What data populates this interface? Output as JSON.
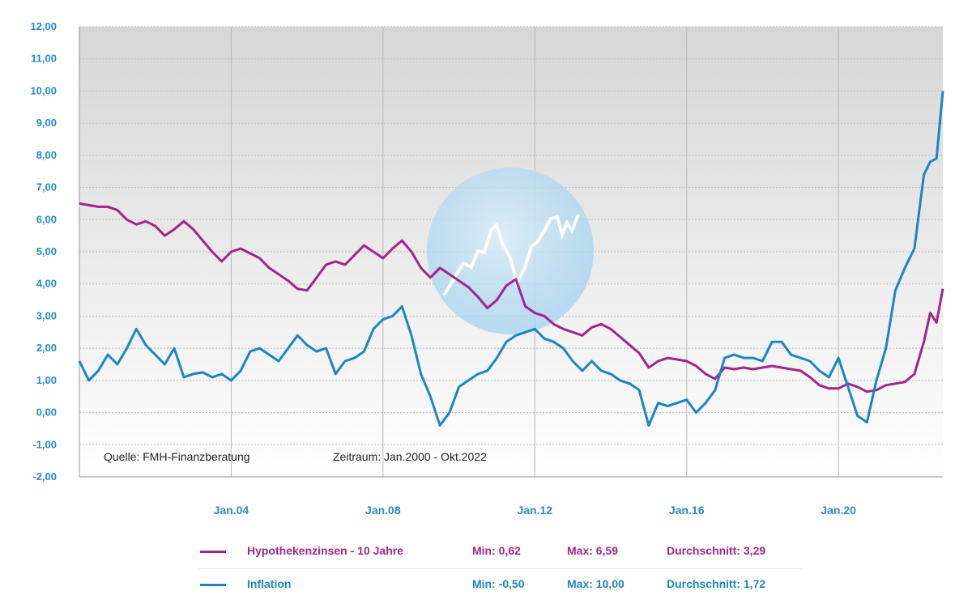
{
  "chart_data": {
    "type": "line",
    "title": "",
    "xlabel": "",
    "ylabel": "",
    "ylim": [
      -2,
      12
    ],
    "xlim": [
      "2000-01",
      "2022-10"
    ],
    "grid": true,
    "y_ticks": [
      "12,00",
      "11,00",
      "10,00",
      "9,00",
      "8,00",
      "7,00",
      "6,00",
      "5,00",
      "4,00",
      "3,00",
      "2,00",
      "1,00",
      "0,00",
      "-1,00",
      "-2,00"
    ],
    "x_ticks": [
      "Jan.04",
      "Jan.08",
      "Jan.12",
      "Jan.16",
      "Jan.20"
    ],
    "annotations": {
      "source": "Quelle: FMH-Finanzberatung",
      "period": "Zeitraum: Jan.2000 - Okt.2022"
    },
    "legend_position": "bottom",
    "series": [
      {
        "name": "Hypothekenzinsen - 10 Jahre",
        "color": "#a0268a",
        "min_label": "Min: 0,62",
        "max_label": "Max: 6,59",
        "avg_label": "Durchschnitt: 3,29",
        "points": [
          [
            "2000-01",
            6.5
          ],
          [
            "2000-04",
            6.45
          ],
          [
            "2000-07",
            6.4
          ],
          [
            "2000-10",
            6.4
          ],
          [
            "2001-01",
            6.3
          ],
          [
            "2001-04",
            6.0
          ],
          [
            "2001-07",
            5.85
          ],
          [
            "2001-10",
            5.95
          ],
          [
            "2002-01",
            5.8
          ],
          [
            "2002-04",
            5.5
          ],
          [
            "2002-07",
            5.7
          ],
          [
            "2002-10",
            5.95
          ],
          [
            "2003-01",
            5.7
          ],
          [
            "2003-04",
            5.35
          ],
          [
            "2003-07",
            5.0
          ],
          [
            "2003-10",
            4.7
          ],
          [
            "2004-01",
            5.0
          ],
          [
            "2004-04",
            5.1
          ],
          [
            "2004-07",
            4.95
          ],
          [
            "2004-10",
            4.8
          ],
          [
            "2005-01",
            4.5
          ],
          [
            "2005-04",
            4.3
          ],
          [
            "2005-07",
            4.1
          ],
          [
            "2005-10",
            3.85
          ],
          [
            "2006-01",
            3.8
          ],
          [
            "2006-04",
            4.2
          ],
          [
            "2006-07",
            4.6
          ],
          [
            "2006-10",
            4.7
          ],
          [
            "2007-01",
            4.6
          ],
          [
            "2007-04",
            4.9
          ],
          [
            "2007-07",
            5.2
          ],
          [
            "2007-10",
            5.0
          ],
          [
            "2008-01",
            4.8
          ],
          [
            "2008-04",
            5.1
          ],
          [
            "2008-07",
            5.35
          ],
          [
            "2008-10",
            5.0
          ],
          [
            "2009-01",
            4.5
          ],
          [
            "2009-04",
            4.2
          ],
          [
            "2009-07",
            4.5
          ],
          [
            "2009-10",
            4.3
          ],
          [
            "2010-01",
            4.1
          ],
          [
            "2010-04",
            3.9
          ],
          [
            "2010-07",
            3.6
          ],
          [
            "2010-10",
            3.25
          ],
          [
            "2011-01",
            3.5
          ],
          [
            "2011-04",
            3.95
          ],
          [
            "2011-07",
            4.15
          ],
          [
            "2011-10",
            3.3
          ],
          [
            "2012-01",
            3.1
          ],
          [
            "2012-04",
            3.0
          ],
          [
            "2012-07",
            2.75
          ],
          [
            "2012-10",
            2.6
          ],
          [
            "2013-01",
            2.5
          ],
          [
            "2013-04",
            2.4
          ],
          [
            "2013-07",
            2.65
          ],
          [
            "2013-10",
            2.75
          ],
          [
            "2014-01",
            2.6
          ],
          [
            "2014-04",
            2.35
          ],
          [
            "2014-07",
            2.1
          ],
          [
            "2014-10",
            1.85
          ],
          [
            "2015-01",
            1.4
          ],
          [
            "2015-04",
            1.6
          ],
          [
            "2015-07",
            1.7
          ],
          [
            "2015-10",
            1.65
          ],
          [
            "2016-01",
            1.6
          ],
          [
            "2016-04",
            1.45
          ],
          [
            "2016-07",
            1.2
          ],
          [
            "2016-10",
            1.05
          ],
          [
            "2017-01",
            1.4
          ],
          [
            "2017-04",
            1.35
          ],
          [
            "2017-07",
            1.4
          ],
          [
            "2017-10",
            1.35
          ],
          [
            "2018-01",
            1.4
          ],
          [
            "2018-04",
            1.45
          ],
          [
            "2018-07",
            1.4
          ],
          [
            "2018-10",
            1.35
          ],
          [
            "2019-01",
            1.3
          ],
          [
            "2019-04",
            1.1
          ],
          [
            "2019-07",
            0.85
          ],
          [
            "2019-10",
            0.75
          ],
          [
            "2020-01",
            0.75
          ],
          [
            "2020-04",
            0.9
          ],
          [
            "2020-07",
            0.8
          ],
          [
            "2020-10",
            0.65
          ],
          [
            "2021-01",
            0.7
          ],
          [
            "2021-04",
            0.85
          ],
          [
            "2021-07",
            0.9
          ],
          [
            "2021-10",
            0.95
          ],
          [
            "2022-01",
            1.2
          ],
          [
            "2022-04",
            2.2
          ],
          [
            "2022-06",
            3.1
          ],
          [
            "2022-08",
            2.8
          ],
          [
            "2022-10",
            3.85
          ]
        ]
      },
      {
        "name": "Inflation",
        "color": "#1b86c3",
        "min_label": "Min: -0,50",
        "max_label": "Max: 10,00",
        "avg_label": "Durchschnitt: 1,72",
        "points": [
          [
            "2000-01",
            1.6
          ],
          [
            "2000-04",
            1.0
          ],
          [
            "2000-07",
            1.3
          ],
          [
            "2000-10",
            1.8
          ],
          [
            "2001-01",
            1.5
          ],
          [
            "2001-04",
            2.0
          ],
          [
            "2001-07",
            2.6
          ],
          [
            "2001-10",
            2.1
          ],
          [
            "2002-01",
            1.8
          ],
          [
            "2002-04",
            1.5
          ],
          [
            "2002-07",
            2.0
          ],
          [
            "2002-10",
            1.1
          ],
          [
            "2003-01",
            1.2
          ],
          [
            "2003-04",
            1.25
          ],
          [
            "2003-07",
            1.1
          ],
          [
            "2003-10",
            1.2
          ],
          [
            "2004-01",
            1.0
          ],
          [
            "2004-04",
            1.3
          ],
          [
            "2004-07",
            1.9
          ],
          [
            "2004-10",
            2.0
          ],
          [
            "2005-01",
            1.8
          ],
          [
            "2005-04",
            1.6
          ],
          [
            "2005-07",
            2.0
          ],
          [
            "2005-10",
            2.4
          ],
          [
            "2006-01",
            2.1
          ],
          [
            "2006-04",
            1.9
          ],
          [
            "2006-07",
            2.0
          ],
          [
            "2006-10",
            1.2
          ],
          [
            "2007-01",
            1.6
          ],
          [
            "2007-04",
            1.7
          ],
          [
            "2007-07",
            1.9
          ],
          [
            "2007-10",
            2.6
          ],
          [
            "2008-01",
            2.9
          ],
          [
            "2008-04",
            3.0
          ],
          [
            "2008-07",
            3.3
          ],
          [
            "2008-10",
            2.4
          ],
          [
            "2009-01",
            1.2
          ],
          [
            "2009-04",
            0.5
          ],
          [
            "2009-07",
            -0.4
          ],
          [
            "2009-10",
            0.0
          ],
          [
            "2010-01",
            0.8
          ],
          [
            "2010-04",
            1.0
          ],
          [
            "2010-07",
            1.2
          ],
          [
            "2010-10",
            1.3
          ],
          [
            "2011-01",
            1.7
          ],
          [
            "2011-04",
            2.2
          ],
          [
            "2011-07",
            2.4
          ],
          [
            "2011-10",
            2.5
          ],
          [
            "2012-01",
            2.6
          ],
          [
            "2012-04",
            2.3
          ],
          [
            "2012-07",
            2.2
          ],
          [
            "2012-10",
            2.0
          ],
          [
            "2013-01",
            1.6
          ],
          [
            "2013-04",
            1.3
          ],
          [
            "2013-07",
            1.6
          ],
          [
            "2013-10",
            1.3
          ],
          [
            "2014-01",
            1.2
          ],
          [
            "2014-04",
            1.0
          ],
          [
            "2014-07",
            0.9
          ],
          [
            "2014-10",
            0.7
          ],
          [
            "2015-01",
            -0.4
          ],
          [
            "2015-04",
            0.3
          ],
          [
            "2015-07",
            0.2
          ],
          [
            "2015-10",
            0.3
          ],
          [
            "2016-01",
            0.4
          ],
          [
            "2016-04",
            0.0
          ],
          [
            "2016-07",
            0.3
          ],
          [
            "2016-10",
            0.7
          ],
          [
            "2017-01",
            1.7
          ],
          [
            "2017-04",
            1.8
          ],
          [
            "2017-07",
            1.7
          ],
          [
            "2017-10",
            1.7
          ],
          [
            "2018-01",
            1.6
          ],
          [
            "2018-04",
            2.2
          ],
          [
            "2018-07",
            2.2
          ],
          [
            "2018-10",
            1.8
          ],
          [
            "2019-01",
            1.7
          ],
          [
            "2019-04",
            1.6
          ],
          [
            "2019-07",
            1.3
          ],
          [
            "2019-10",
            1.1
          ],
          [
            "2020-01",
            1.7
          ],
          [
            "2020-04",
            0.8
          ],
          [
            "2020-07",
            -0.1
          ],
          [
            "2020-10",
            -0.3
          ],
          [
            "2021-01",
            1.0
          ],
          [
            "2021-04",
            2.0
          ],
          [
            "2021-07",
            3.8
          ],
          [
            "2021-10",
            4.5
          ],
          [
            "2022-01",
            5.1
          ],
          [
            "2022-04",
            7.4
          ],
          [
            "2022-06",
            7.8
          ],
          [
            "2022-08",
            7.9
          ],
          [
            "2022-10",
            10.0
          ]
        ]
      }
    ]
  }
}
